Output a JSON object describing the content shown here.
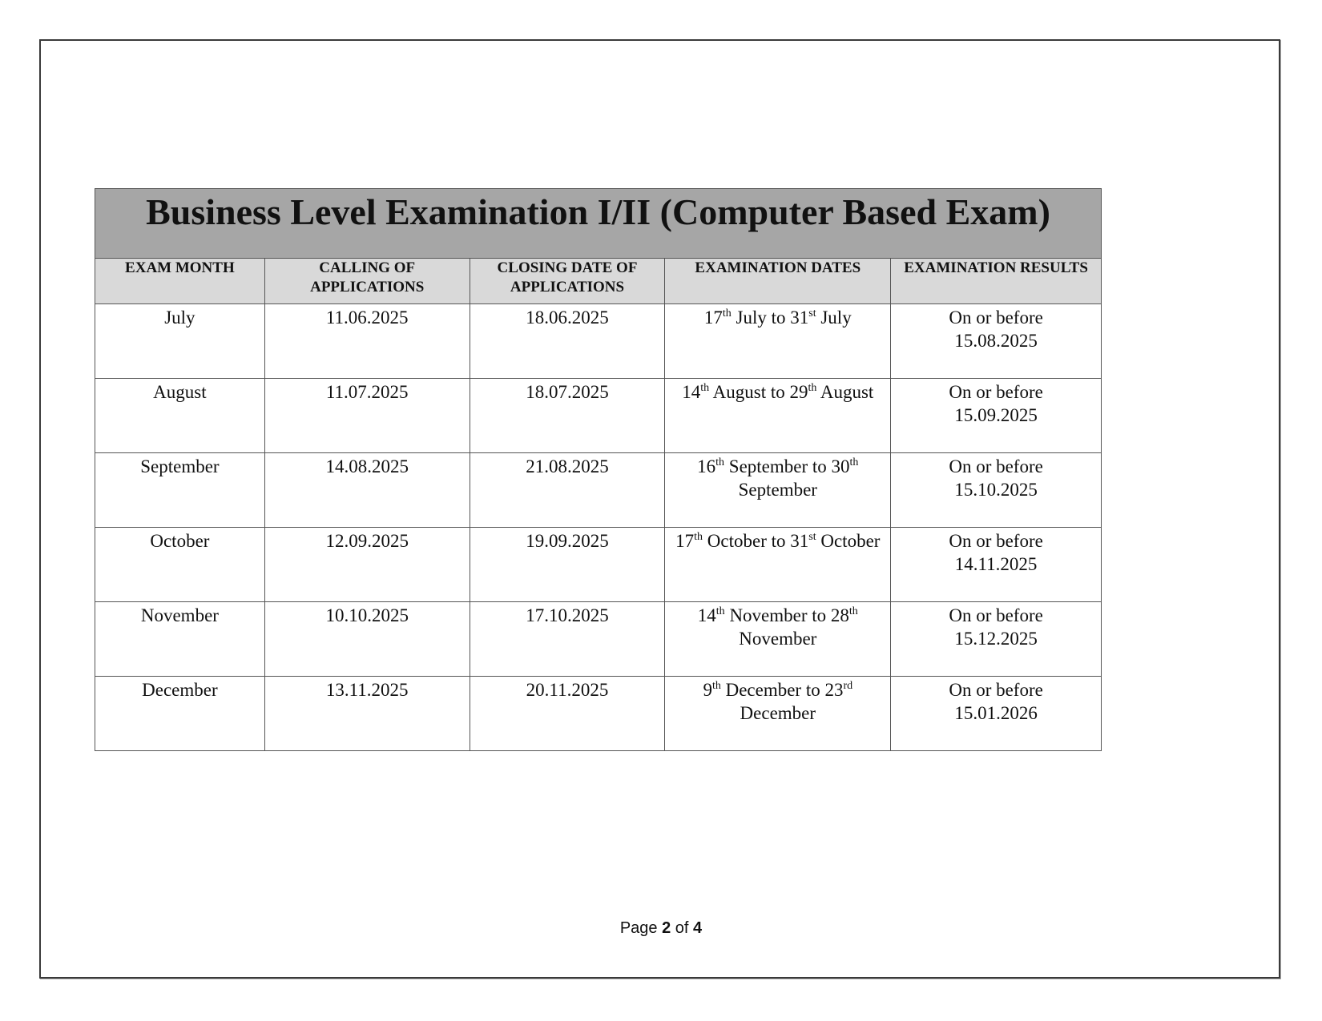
{
  "title": "Business Level Examination I/II (Computer Based Exam)",
  "headers": [
    "EXAM MONTH",
    "CALLING OF APPLICATIONS",
    "CLOSING DATE OF APPLICATIONS",
    "EXAMINATION DATES",
    "EXAMINATION RESULTS"
  ],
  "rows": [
    {
      "month": "July",
      "calling": "11.06.2025",
      "closing": "18.06.2025",
      "d1": "17",
      "s1": "th",
      "m1": " July to ",
      "d2": "31",
      "s2": "st",
      "m2": " July",
      "r1": "On or before",
      "r2": "15.08.2025"
    },
    {
      "month": "August",
      "calling": "11.07.2025",
      "closing": "18.07.2025",
      "d1": "14",
      "s1": "th",
      "m1": " August to ",
      "d2": "29",
      "s2": "th",
      "m2": " August",
      "r1": "On or before",
      "r2": "15.09.2025"
    },
    {
      "month": "September",
      "calling": "14.08.2025",
      "closing": "21.08.2025",
      "d1": "16",
      "s1": "th",
      "m1": " September to ",
      "d2": "30",
      "s2": "th",
      "m2": " September",
      "r1": "On or before",
      "r2": "15.10.2025"
    },
    {
      "month": "October",
      "calling": "12.09.2025",
      "closing": "19.09.2025",
      "d1": "17",
      "s1": "th",
      "m1": " October to ",
      "d2": "31",
      "s2": "st",
      "m2": " October",
      "r1": "On or before",
      "r2": "14.11.2025"
    },
    {
      "month": "November",
      "calling": "10.10.2025",
      "closing": "17.10.2025",
      "d1": "14",
      "s1": "th",
      "m1": " November to ",
      "d2": "28",
      "s2": "th",
      "m2": " November",
      "r1": "On or before",
      "r2": "15.12.2025"
    },
    {
      "month": "December",
      "calling": "13.11.2025",
      "closing": "20.11.2025",
      "d1": "9",
      "s1": "th",
      "m1": " December to ",
      "d2": "23",
      "s2": "rd",
      "m2": " December",
      "r1": "On or before",
      "r2": "15.01.2026"
    }
  ],
  "footer": {
    "prefix": "Page ",
    "current": "2",
    "middle": " of ",
    "total": "4"
  }
}
